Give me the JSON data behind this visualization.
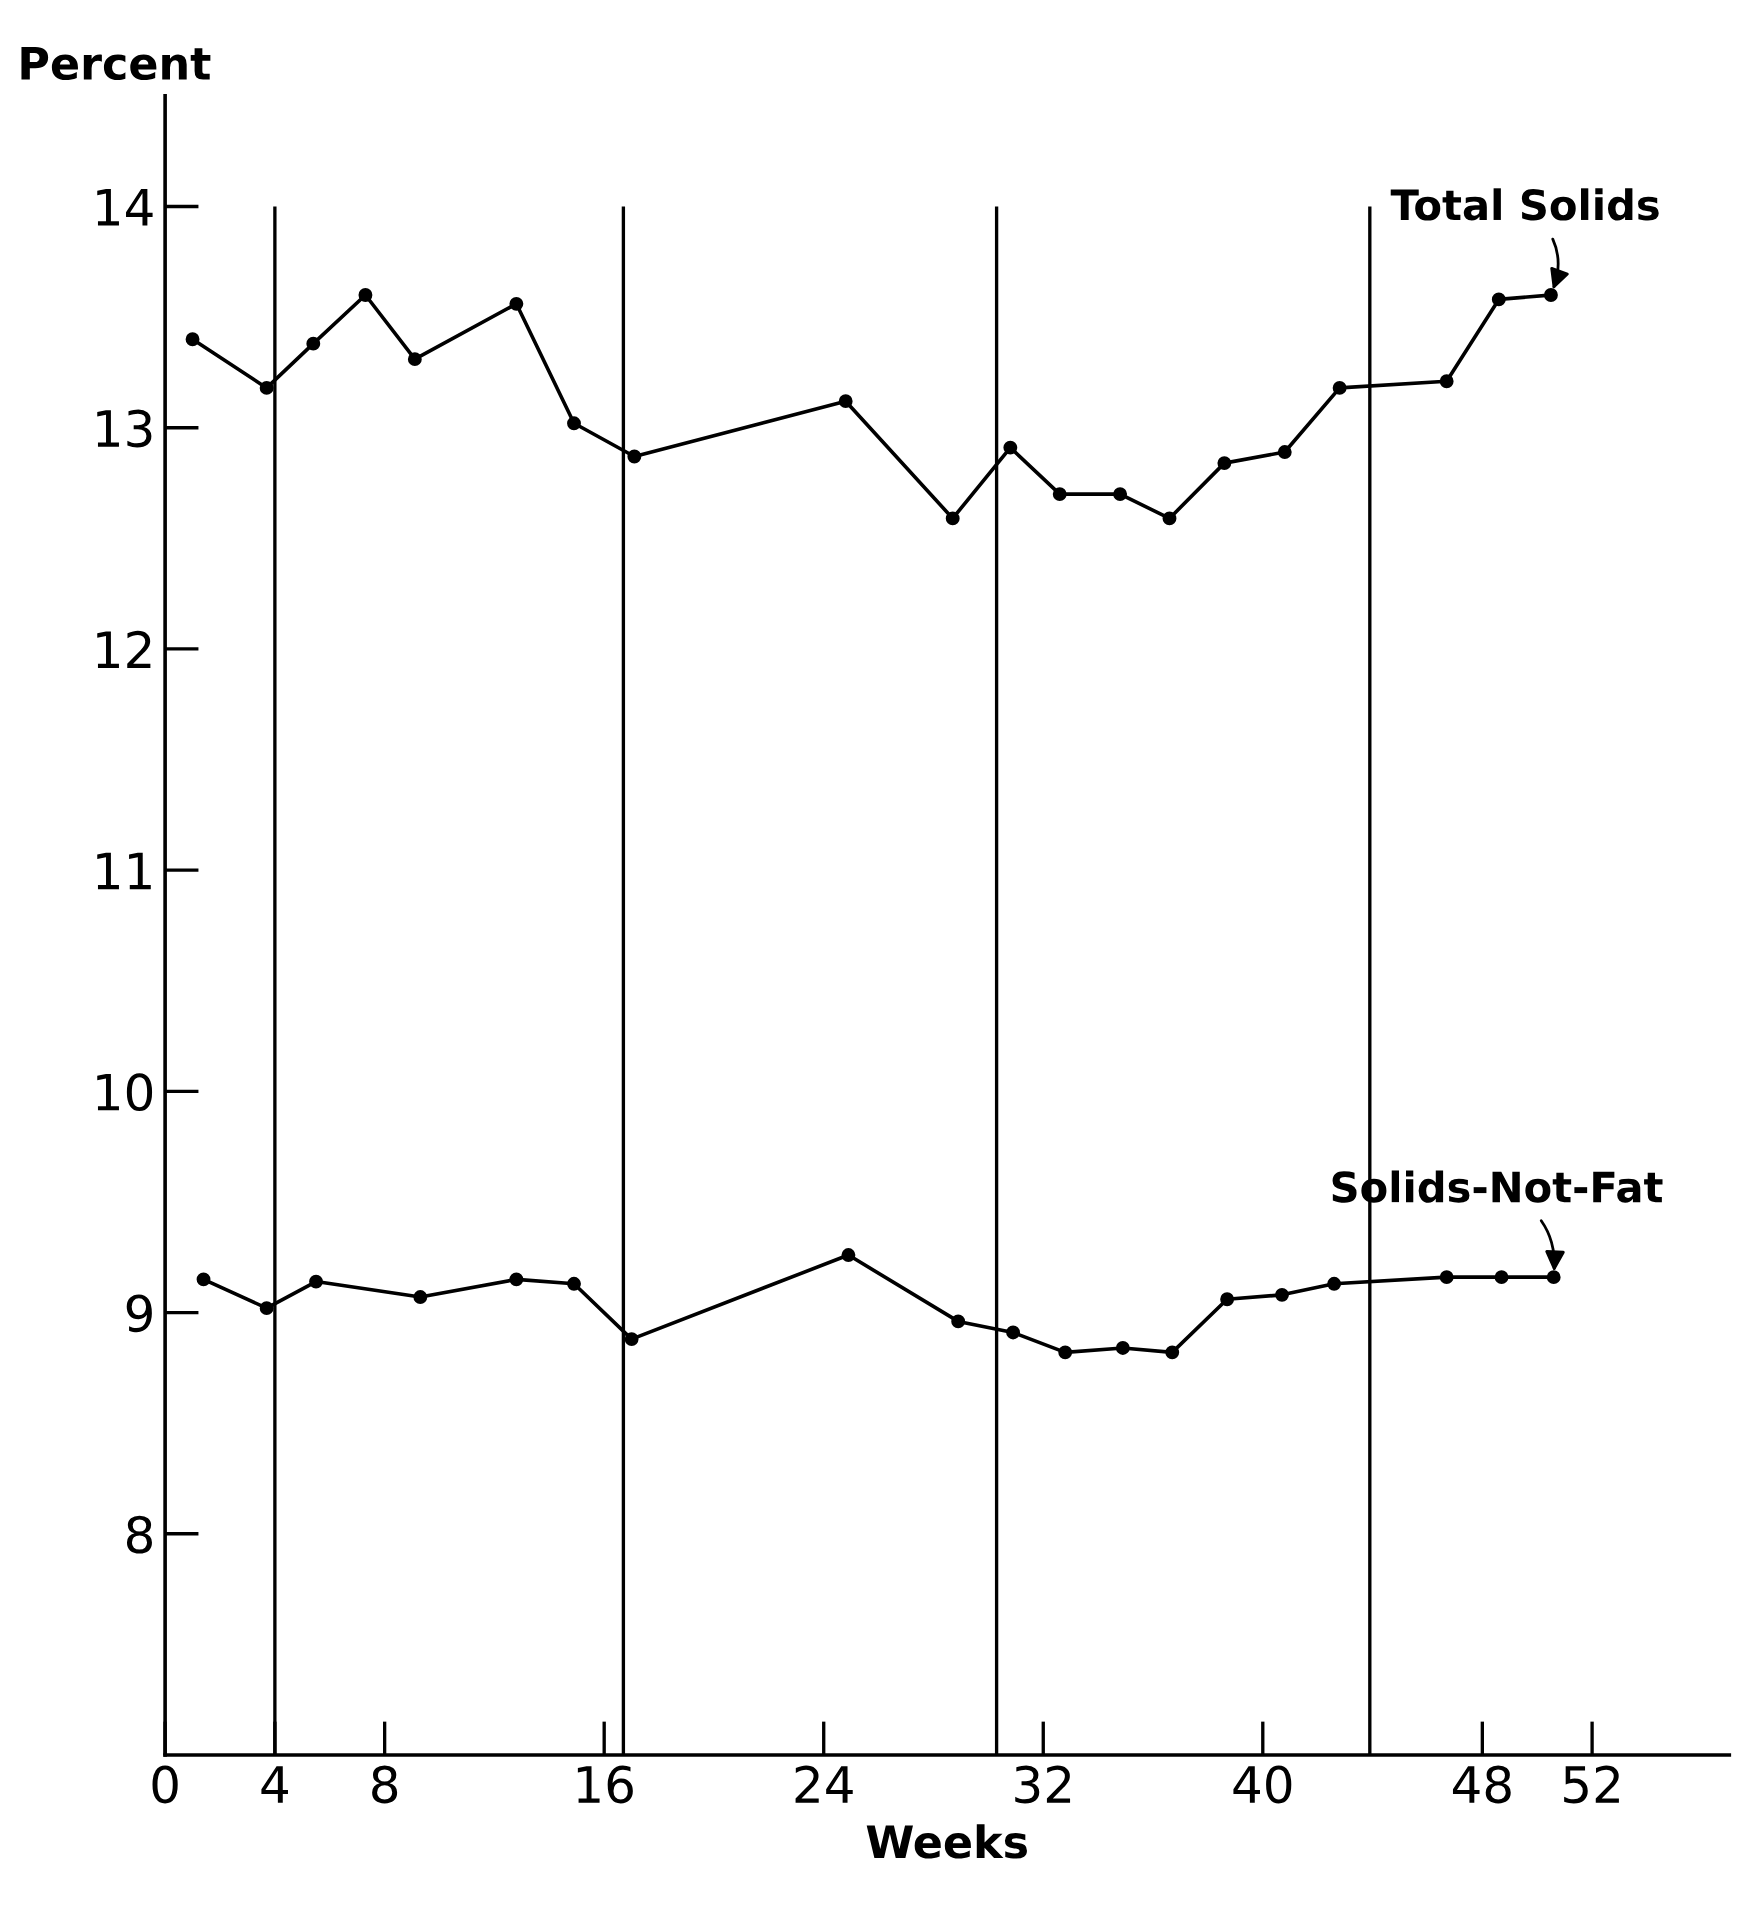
{
  "chart_data": {
    "type": "line",
    "xlabel": "Weeks",
    "ylabel": "Percent",
    "series": [
      {
        "name": "Total Solids",
        "color": "#000000",
        "x": [
          1,
          3.7,
          5.4,
          7.3,
          9.1,
          12.8,
          14.9,
          17.1,
          24.8,
          28.7,
          30.8,
          32.6,
          34.8,
          36.6,
          38.6,
          40.8,
          42.8,
          46.7,
          48.6,
          50.5
        ],
        "values": [
          13.4,
          13.18,
          13.38,
          13.6,
          13.31,
          13.56,
          13.02,
          12.87,
          13.12,
          12.59,
          12.91,
          12.7,
          12.7,
          12.59,
          12.84,
          12.89,
          13.18,
          13.21,
          13.58,
          13.6
        ]
      },
      {
        "name": "Solids-Not-Fat",
        "color": "#000000",
        "x": [
          1.4,
          3.7,
          5.5,
          9.3,
          12.8,
          14.9,
          17.0,
          24.9,
          28.9,
          30.9,
          32.8,
          34.9,
          36.7,
          38.7,
          40.7,
          42.6,
          46.7,
          48.7,
          50.6
        ],
        "values": [
          9.15,
          9.02,
          9.14,
          9.07,
          9.15,
          9.13,
          8.88,
          9.26,
          8.96,
          8.91,
          8.82,
          8.84,
          8.82,
          9.06,
          9.08,
          9.13,
          9.16,
          9.16,
          9.16
        ]
      }
    ],
    "xlim": [
      0,
      57
    ],
    "xticks": [
      0,
      4,
      8,
      16,
      24,
      32,
      40,
      48,
      52
    ],
    "ylim": [
      7,
      14.5
    ],
    "yticks": [
      8,
      9,
      10,
      11,
      12,
      13,
      14
    ],
    "ref_lines": [
      {
        "axis": "x",
        "value": 4
      },
      {
        "axis": "x",
        "value": 16.7
      },
      {
        "axis": "x",
        "value": 30.3
      },
      {
        "axis": "x",
        "value": 43.9
      }
    ],
    "marker": "circle",
    "line_style": "solid",
    "grid": false,
    "legend": false
  }
}
